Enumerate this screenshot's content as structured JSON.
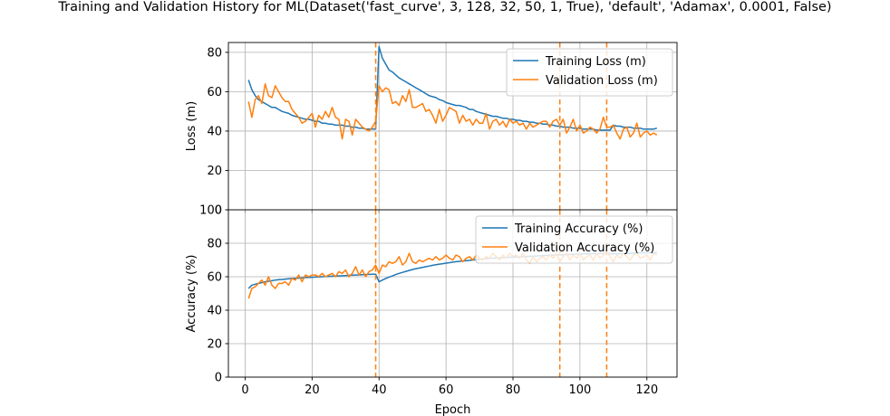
{
  "figure": {
    "title": "Training and Validation History for ML(Dataset('fast_curve', 3, 128, 32, 50, 1, True), 'default', 'Adamax', 0.0001, False)"
  },
  "style": {
    "train_color": "#1f77b4",
    "val_color": "#ff7f0e",
    "marker_color": "#ff7f0e",
    "grid_color": "#b0b0b0"
  },
  "chart_data": [
    {
      "type": "line",
      "panel": "top",
      "title": "",
      "xlabel": "",
      "ylabel": "Loss (m)",
      "xlim": [
        -5,
        129
      ],
      "ylim": [
        0,
        85
      ],
      "xticks": [
        0,
        20,
        40,
        60,
        80,
        100,
        120
      ],
      "yticks": [
        0,
        20,
        40,
        60,
        80
      ],
      "ytick_labels": [
        "0",
        "20",
        "40",
        "60",
        "80"
      ],
      "show_xtick_labels": false,
      "grid": true,
      "legend": "upper right",
      "vlines": [
        39,
        94,
        108
      ],
      "series": [
        {
          "name": "Training Loss (m)",
          "color": "#1f77b4",
          "x": [
            1,
            2,
            3,
            4,
            5,
            6,
            7,
            8,
            9,
            10,
            11,
            12,
            13,
            14,
            15,
            16,
            17,
            18,
            19,
            20,
            21,
            22,
            23,
            24,
            25,
            26,
            27,
            28,
            29,
            30,
            31,
            32,
            33,
            34,
            35,
            36,
            37,
            38,
            39,
            40,
            41,
            42,
            43,
            44,
            45,
            46,
            47,
            48,
            49,
            50,
            51,
            52,
            53,
            54,
            55,
            56,
            57,
            58,
            59,
            60,
            61,
            62,
            63,
            64,
            65,
            66,
            67,
            68,
            69,
            70,
            71,
            72,
            73,
            74,
            75,
            76,
            77,
            78,
            79,
            80,
            81,
            82,
            83,
            84,
            85,
            86,
            87,
            88,
            89,
            90,
            91,
            92,
            93,
            94,
            95,
            96,
            97,
            98,
            99,
            100,
            101,
            102,
            103,
            104,
            105,
            106,
            107,
            108,
            109,
            110,
            111,
            112,
            113,
            114,
            115,
            116,
            117,
            118,
            119,
            120,
            121,
            122,
            123
          ],
          "values": [
            66,
            61,
            58,
            56,
            55,
            54,
            53,
            52,
            52,
            51,
            50,
            49.5,
            49,
            48,
            47.5,
            47,
            46.5,
            46,
            46,
            45.5,
            45,
            45,
            44,
            44,
            43.5,
            43.5,
            43,
            43,
            43,
            42.5,
            42.5,
            42,
            42,
            41.5,
            41.5,
            41,
            41,
            41,
            41,
            83,
            77,
            74,
            71,
            70,
            68.5,
            67,
            66,
            65,
            64,
            63,
            62,
            61,
            60,
            59,
            58,
            57.5,
            57,
            56,
            55.5,
            54.5,
            54,
            53.5,
            53,
            53,
            52.5,
            52,
            51,
            51,
            50,
            49.5,
            49,
            48.5,
            48,
            47.5,
            47.5,
            47,
            46.5,
            46.5,
            46,
            46,
            45.5,
            45.5,
            45,
            45,
            44.5,
            44.5,
            44,
            44,
            43.5,
            43.5,
            43,
            43,
            42.5,
            42.5,
            42,
            42,
            42,
            41.5,
            41.5,
            41.5,
            41,
            41,
            41,
            41,
            40.5,
            40.5,
            40.5,
            40.5,
            40.5,
            43,
            42.5,
            42.5,
            42,
            42,
            42,
            41.5,
            41.5,
            41.5,
            41,
            41,
            41,
            41,
            41.5
          ]
        },
        {
          "name": "Validation Loss (m)",
          "color": "#ff7f0e",
          "x": [
            1,
            2,
            3,
            4,
            5,
            6,
            7,
            8,
            9,
            10,
            11,
            12,
            13,
            14,
            15,
            16,
            17,
            18,
            19,
            20,
            21,
            22,
            23,
            24,
            25,
            26,
            27,
            28,
            29,
            30,
            31,
            32,
            33,
            34,
            35,
            36,
            37,
            38,
            39,
            40,
            41,
            42,
            43,
            44,
            45,
            46,
            47,
            48,
            49,
            50,
            51,
            52,
            53,
            54,
            55,
            56,
            57,
            58,
            59,
            60,
            61,
            62,
            63,
            64,
            65,
            66,
            67,
            68,
            69,
            70,
            71,
            72,
            73,
            74,
            75,
            76,
            77,
            78,
            79,
            80,
            81,
            82,
            83,
            84,
            85,
            86,
            87,
            88,
            89,
            90,
            91,
            92,
            93,
            94,
            95,
            96,
            97,
            98,
            99,
            100,
            101,
            102,
            103,
            104,
            105,
            106,
            107,
            108,
            109,
            110,
            111,
            112,
            113,
            114,
            115,
            116,
            117,
            118,
            119,
            120,
            121,
            122,
            123
          ],
          "values": [
            55,
            47,
            56,
            58,
            54,
            64,
            58,
            57,
            63,
            60,
            57,
            55,
            55,
            51,
            49,
            47,
            44,
            45,
            47,
            49,
            42,
            48,
            46,
            50,
            47,
            52,
            47,
            46,
            36,
            46,
            45,
            38,
            46,
            44,
            42,
            41,
            40,
            42,
            45,
            63,
            60,
            62,
            61,
            54,
            55,
            53,
            58,
            55,
            61,
            52,
            52,
            53,
            54,
            50,
            51,
            48,
            44,
            51,
            45,
            48,
            52,
            51,
            50,
            44,
            48,
            45,
            46,
            43,
            46,
            44,
            44,
            49,
            41,
            45,
            46,
            43,
            45,
            42,
            46,
            44,
            45,
            43,
            44,
            41,
            44,
            42,
            43,
            44,
            45,
            45,
            42,
            45,
            46,
            43,
            46,
            39,
            42,
            46,
            40,
            43,
            39,
            40,
            42,
            41,
            39,
            41,
            47,
            42,
            42,
            43,
            39,
            36,
            41,
            42,
            37,
            39,
            44,
            37,
            39,
            40,
            38,
            39,
            38
          ]
        }
      ]
    },
    {
      "type": "line",
      "panel": "bottom",
      "title": "",
      "xlabel": "Epoch",
      "ylabel": "Accuracy (%)",
      "xlim": [
        -5,
        129
      ],
      "ylim": [
        0,
        100
      ],
      "xticks": [
        0,
        20,
        40,
        60,
        80,
        100,
        120
      ],
      "xtick_labels": [
        "0",
        "20",
        "40",
        "60",
        "80",
        "100",
        "120"
      ],
      "yticks": [
        0,
        20,
        40,
        60,
        80,
        100
      ],
      "ytick_labels": [
        "0",
        "20",
        "40",
        "60",
        "80",
        "100"
      ],
      "grid": true,
      "legend": "upper right",
      "vlines": [
        39,
        94,
        108
      ],
      "series": [
        {
          "name": "Training Accuracy (%)",
          "color": "#1f77b4",
          "x": [
            1,
            2,
            3,
            4,
            5,
            6,
            7,
            8,
            9,
            10,
            11,
            12,
            13,
            14,
            15,
            16,
            17,
            18,
            19,
            20,
            21,
            22,
            23,
            24,
            25,
            26,
            27,
            28,
            29,
            30,
            31,
            32,
            33,
            34,
            35,
            36,
            37,
            38,
            39,
            40,
            41,
            42,
            43,
            44,
            45,
            46,
            47,
            48,
            49,
            50,
            51,
            52,
            53,
            54,
            55,
            56,
            57,
            58,
            59,
            60,
            61,
            62,
            63,
            64,
            65,
            66,
            67,
            68,
            69,
            70,
            71,
            72,
            73,
            74,
            75,
            76,
            77,
            78,
            79,
            80,
            81,
            82,
            83,
            84,
            85,
            86,
            87,
            88,
            89,
            90,
            91,
            92,
            93,
            94,
            95,
            96,
            97,
            98,
            99,
            100,
            101,
            102,
            103,
            104,
            105,
            106,
            107,
            108,
            109,
            110,
            111,
            112,
            113,
            114,
            115,
            116,
            117,
            118,
            119,
            120,
            121,
            122,
            123
          ],
          "values": [
            53,
            55,
            55.5,
            56,
            56.5,
            57,
            57.3,
            57.6,
            58,
            58.2,
            58.4,
            58.6,
            58.8,
            59,
            59.1,
            59.2,
            59.3,
            59.5,
            59.6,
            59.7,
            59.8,
            59.9,
            60,
            60.1,
            60.2,
            60.3,
            60.4,
            60.5,
            60.6,
            60.7,
            60.8,
            60.9,
            61,
            61.1,
            61.2,
            61.3,
            61.4,
            61.5,
            61.5,
            57,
            58,
            59,
            59.8,
            60.5,
            61.3,
            62,
            62.6,
            63.2,
            63.8,
            64.3,
            64.8,
            65.2,
            65.6,
            66,
            66.4,
            66.8,
            67.2,
            67.5,
            67.8,
            68.1,
            68.4,
            68.7,
            69,
            69.2,
            69.4,
            69.6,
            69.8,
            70,
            70.2,
            70.4,
            70.6,
            70.8,
            71,
            71.1,
            71.2,
            71.3,
            71.4,
            71.5,
            71.6,
            71.7,
            71.8,
            71.9,
            72,
            72.1,
            72.2,
            72.3,
            72.4,
            72.5,
            72.6,
            72.7,
            72.8,
            72.9,
            73,
            73,
            73.1,
            73.2,
            73.3,
            73.4,
            73.5,
            73.5,
            73.6,
            73.7,
            73.8,
            73.8,
            73.9,
            74,
            74,
            74,
            73.8,
            73.6,
            73.7,
            73.8,
            73.9,
            74,
            74,
            74.1,
            74.2,
            74.2,
            74.3,
            74.3,
            74.4,
            74.4,
            74.5
          ]
        },
        {
          "name": "Validation Accuracy (%)",
          "color": "#ff7f0e",
          "x": [
            1,
            2,
            3,
            4,
            5,
            6,
            7,
            8,
            9,
            10,
            11,
            12,
            13,
            14,
            15,
            16,
            17,
            18,
            19,
            20,
            21,
            22,
            23,
            24,
            25,
            26,
            27,
            28,
            29,
            30,
            31,
            32,
            33,
            34,
            35,
            36,
            37,
            38,
            39,
            40,
            41,
            42,
            43,
            44,
            45,
            46,
            47,
            48,
            49,
            50,
            51,
            52,
            53,
            54,
            55,
            56,
            57,
            58,
            59,
            60,
            61,
            62,
            63,
            64,
            65,
            66,
            67,
            68,
            69,
            70,
            71,
            72,
            73,
            74,
            75,
            76,
            77,
            78,
            79,
            80,
            81,
            82,
            83,
            84,
            85,
            86,
            87,
            88,
            89,
            90,
            91,
            92,
            93,
            94,
            95,
            96,
            97,
            98,
            99,
            100,
            101,
            102,
            103,
            104,
            105,
            106,
            107,
            108,
            109,
            110,
            111,
            112,
            113,
            114,
            115,
            116,
            117,
            118,
            119,
            120,
            121,
            122,
            123
          ],
          "values": [
            47,
            53,
            54,
            56,
            58,
            55,
            60,
            55,
            53,
            56,
            56,
            57,
            55,
            59,
            58,
            61,
            57,
            61,
            60,
            61,
            61,
            60,
            62,
            60,
            61,
            62,
            60,
            63,
            62,
            64,
            60,
            62,
            66,
            61,
            64,
            60,
            63,
            64,
            67,
            62,
            67,
            66,
            69,
            68,
            69,
            72,
            67,
            69,
            74,
            69,
            68,
            70,
            69,
            70,
            71,
            70,
            72,
            70,
            71,
            73,
            71,
            70,
            73,
            72,
            69,
            71,
            72,
            70,
            73,
            71,
            70,
            72,
            71,
            74,
            72,
            70,
            73,
            71,
            74,
            72,
            73,
            71,
            74,
            70,
            68,
            72,
            69,
            71,
            72,
            70,
            73,
            71,
            74,
            69,
            72,
            74,
            70,
            73,
            71,
            74,
            70,
            72,
            73,
            70,
            74,
            71,
            73,
            75,
            72,
            69,
            73,
            71,
            74,
            72,
            70,
            73,
            74,
            71,
            72,
            73,
            70,
            74,
            73
          ]
        }
      ]
    }
  ]
}
